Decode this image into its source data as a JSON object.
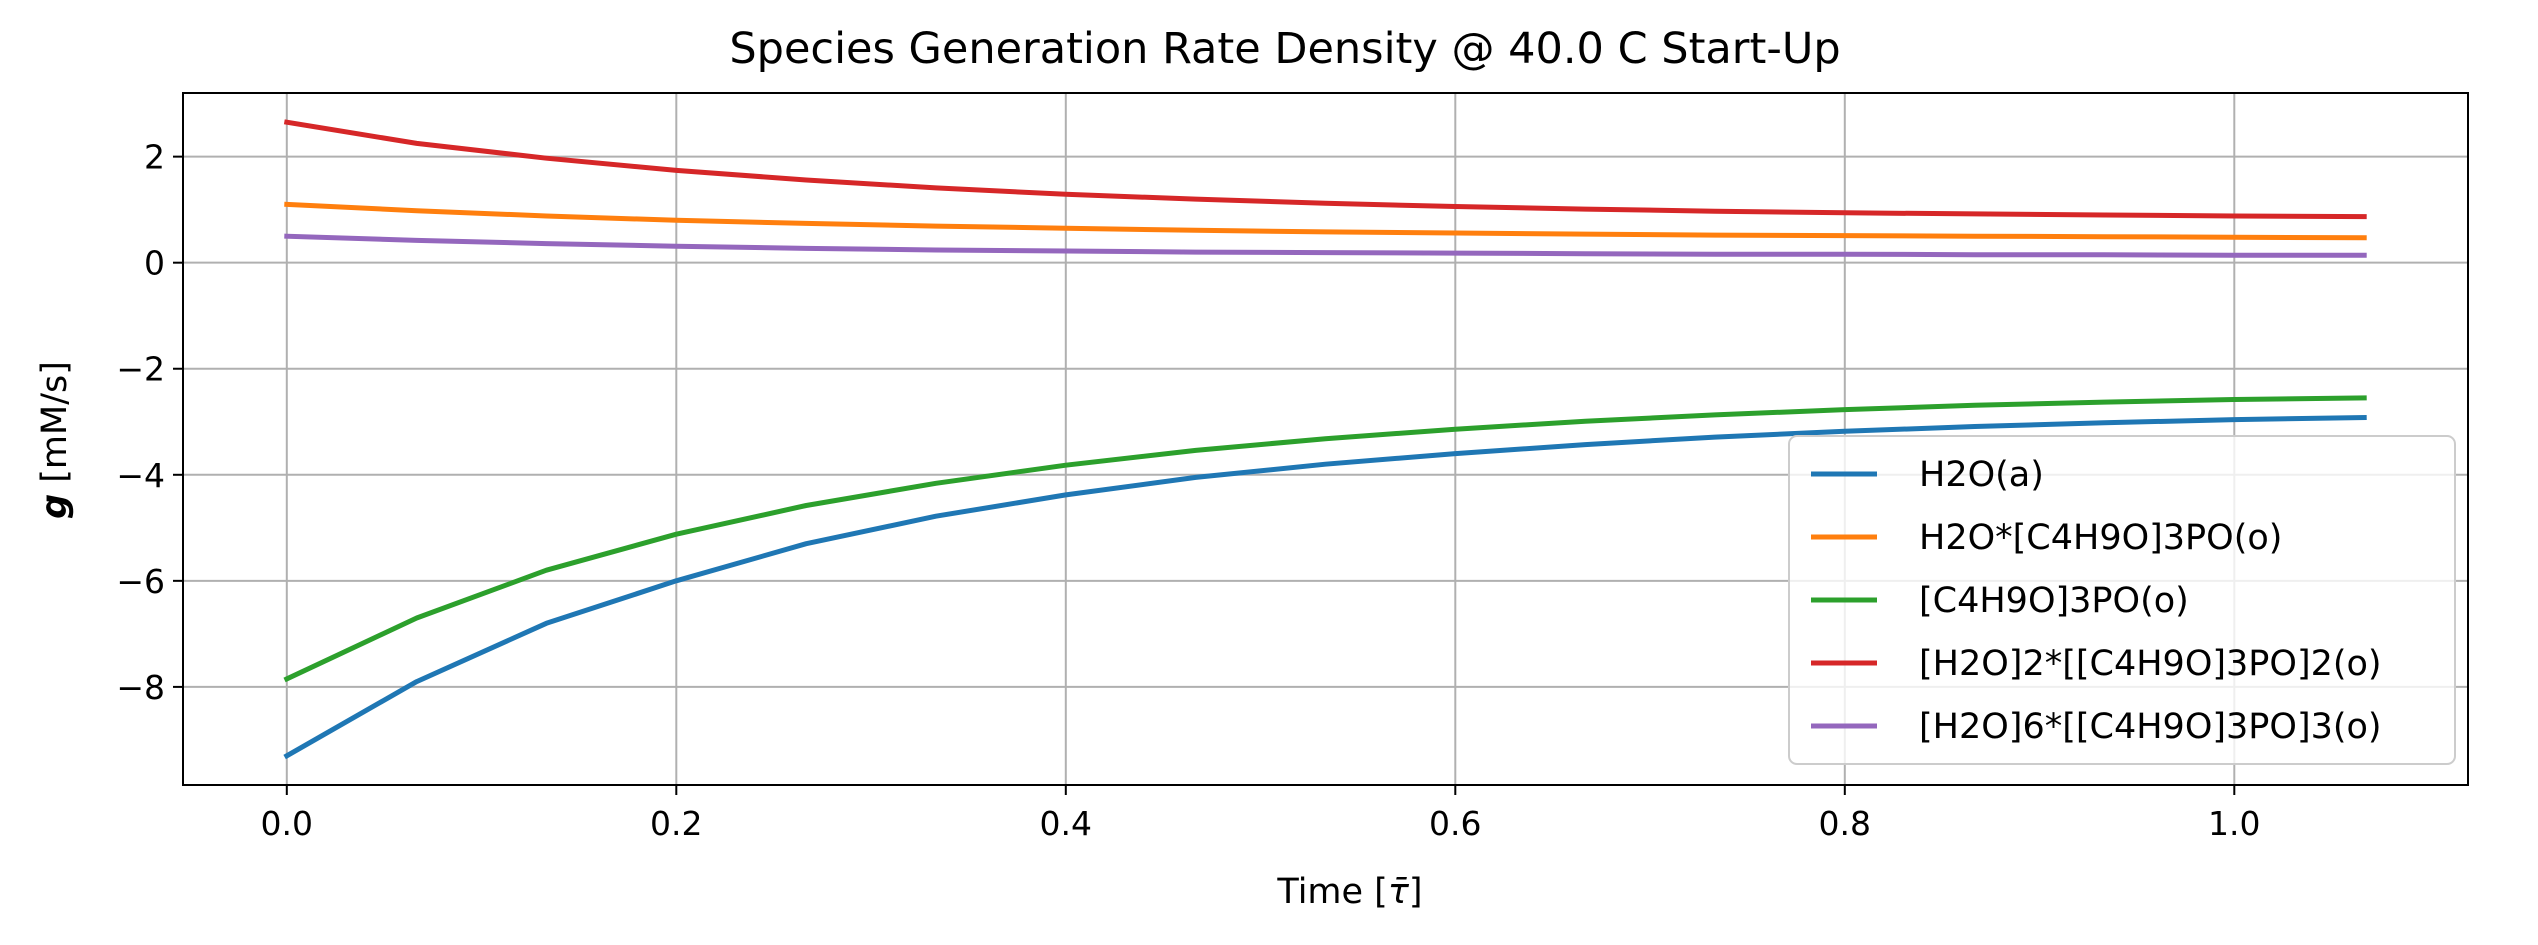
{
  "chart_data": {
    "type": "line",
    "title": "Species Generation Rate Density @ 40.0 C Start-Up",
    "xlabel": "Time [τ̄]",
    "xlabel_main": "Time [",
    "xlabel_symbol": "τ̄",
    "xlabel_end": "]",
    "ylabel": "g [mM/s]",
    "ylabel_symbol": "g",
    "ylabel_unit": "[mM/s]",
    "xlim": [
      -0.0533,
      1.12
    ],
    "ylim": [
      -9.85,
      3.2
    ],
    "xticks": [
      0.0,
      0.2,
      0.4,
      0.6,
      0.8,
      1.0
    ],
    "xtick_labels": [
      "0.0",
      "0.2",
      "0.4",
      "0.6",
      "0.8",
      "1.0"
    ],
    "yticks": [
      -8,
      -6,
      -4,
      -2,
      0,
      2
    ],
    "ytick_labels": [
      "−8",
      "−6",
      "−4",
      "−2",
      "0",
      "2"
    ],
    "grid": true,
    "legend_position": "lower-right",
    "x": [
      0.0,
      0.0667,
      0.1333,
      0.2,
      0.2667,
      0.3333,
      0.4,
      0.4667,
      0.5333,
      0.6,
      0.6667,
      0.7333,
      0.8,
      0.8667,
      0.9333,
      1.0,
      1.0667
    ],
    "series": [
      {
        "name": "H2O(a)",
        "color": "#1f77b4",
        "values": [
          -9.3,
          -7.9,
          -6.8,
          -6.0,
          -5.3,
          -4.78,
          -4.38,
          -4.05,
          -3.8,
          -3.6,
          -3.43,
          -3.29,
          -3.18,
          -3.09,
          -3.02,
          -2.96,
          -2.92
        ]
      },
      {
        "name": "H2O*[C4H9O]3PO(o)",
        "color": "#ff7f0e",
        "values": [
          1.1,
          0.98,
          0.88,
          0.8,
          0.74,
          0.69,
          0.65,
          0.61,
          0.58,
          0.56,
          0.54,
          0.52,
          0.51,
          0.5,
          0.49,
          0.48,
          0.47
        ]
      },
      {
        "name": "[C4H9O]3PO(o)",
        "color": "#2ca02c",
        "values": [
          -7.85,
          -6.7,
          -5.8,
          -5.12,
          -4.58,
          -4.16,
          -3.82,
          -3.54,
          -3.32,
          -3.14,
          -2.99,
          -2.87,
          -2.77,
          -2.69,
          -2.63,
          -2.58,
          -2.55
        ]
      },
      {
        "name": "[H2O]2*[[C4H9O]3PO]2(o)",
        "color": "#d62728",
        "values": [
          2.65,
          2.25,
          1.97,
          1.74,
          1.56,
          1.41,
          1.29,
          1.2,
          1.12,
          1.06,
          1.01,
          0.97,
          0.94,
          0.92,
          0.9,
          0.88,
          0.87
        ]
      },
      {
        "name": "[H2O]6*[[C4H9O]3PO]3(o)",
        "color": "#9467bd",
        "values": [
          0.5,
          0.42,
          0.36,
          0.31,
          0.27,
          0.24,
          0.22,
          0.2,
          0.19,
          0.18,
          0.17,
          0.16,
          0.16,
          0.15,
          0.15,
          0.14,
          0.14
        ]
      }
    ]
  }
}
